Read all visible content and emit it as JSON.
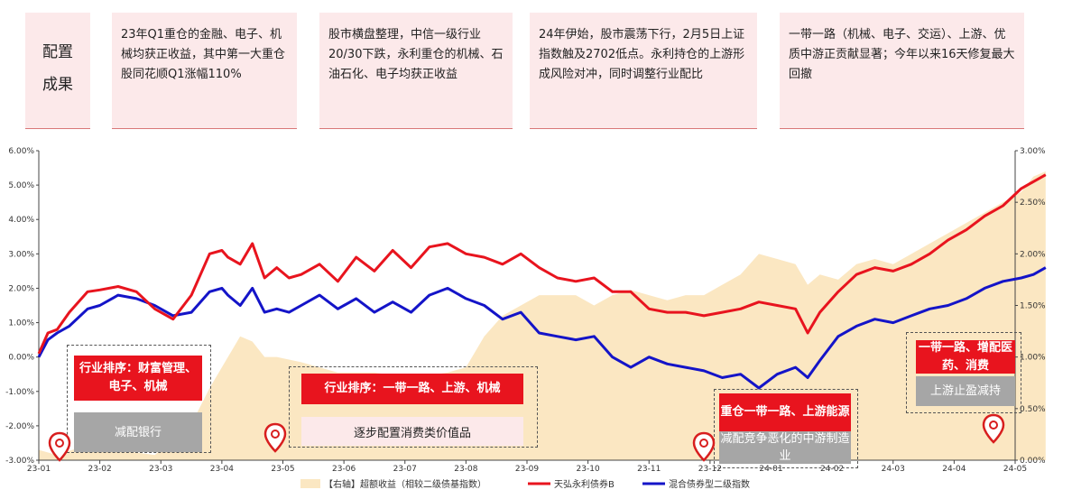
{
  "header": {
    "title_lines": [
      "配置",
      "成果"
    ],
    "cards": [
      "23年Q1重仓的金融、电子、机械均获正收益，其中第一大重仓股同花顺Q1涨幅110%",
      "股市横盘整理，中信一级行业20/30下跌，永利重仓的机械、石油石化、电子均获正收益",
      "24年伊始，股市震荡下行，2月5日上证指数触及2702低点。永利持仓的上游形成风险对冲，同时调整行业配比",
      "一带一路（机械、电子、交运）、上游、优质中游正贡献显著；今年以来16天修复最大回撤"
    ]
  },
  "annotations": [
    {
      "top": "行业排序：财富管理、电子、机械",
      "bottom": "减配银行"
    },
    {
      "top": "行业排序：一带一路、上游、机械",
      "bottom": "逐步配置消费类价值品"
    },
    {
      "top": "重仓一带一路、上游能源",
      "bottom": "减配竞争恶化的中游制造业"
    },
    {
      "top": "一带一路、增配医药、消费",
      "bottom": "上游止盈减持"
    }
  ],
  "colors": {
    "fund": "#e8141e",
    "index": "#1414c8",
    "excess": "#fbe7c2",
    "header_bg": "#fce9ea",
    "pin": "#d81e1e"
  },
  "chart_data": {
    "type": "line",
    "x_ticks": [
      "23-01",
      "23-02",
      "23-03",
      "23-04",
      "23-05",
      "23-06",
      "23-07",
      "23-08",
      "23-09",
      "23-10",
      "23-11",
      "23-12",
      "24-01",
      "24-02",
      "24-03",
      "24-04",
      "24-05"
    ],
    "left_axis": {
      "ticks": [
        "6.00%",
        "5.00%",
        "4.00%",
        "3.00%",
        "2.00%",
        "1.00%",
        "0.00%",
        "-1.00%",
        "-2.00%",
        "-3.00%"
      ],
      "ylim": [
        -3,
        6
      ]
    },
    "right_axis": {
      "ticks": [
        "3.00%",
        "2.50%",
        "2.00%",
        "1.50%",
        "1.00%",
        "0.50%",
        "0.00%"
      ],
      "ylim": [
        0,
        3
      ]
    },
    "legend": [
      "【右轴】超额收益（相较二级债基指数）",
      "天弘永利债券B",
      "混合债券型二级指数"
    ],
    "series": [
      {
        "name": "天弘永利债券B",
        "axis": "left",
        "x": [
          0,
          0.15,
          0.3,
          0.5,
          0.8,
          1,
          1.3,
          1.6,
          1.9,
          2.2,
          2.5,
          2.8,
          3,
          3.1,
          3.3,
          3.5,
          3.7,
          3.9,
          4.1,
          4.3,
          4.6,
          4.9,
          5.2,
          5.5,
          5.8,
          6.1,
          6.4,
          6.7,
          7,
          7.3,
          7.6,
          7.9,
          8.2,
          8.5,
          8.8,
          9.1,
          9.4,
          9.7,
          10,
          10.3,
          10.6,
          10.9,
          11.2,
          11.5,
          11.8,
          12.1,
          12.4,
          12.6,
          12.8,
          13.1,
          13.4,
          13.7,
          14,
          14.3,
          14.6,
          14.9,
          15.2,
          15.5,
          15.8,
          16.1,
          16.3,
          16.5
        ],
        "values": [
          0.1,
          0.7,
          0.8,
          1.3,
          1.9,
          1.95,
          2.05,
          1.9,
          1.4,
          1.1,
          1.8,
          3.0,
          3.1,
          2.9,
          2.7,
          3.3,
          2.3,
          2.6,
          2.3,
          2.4,
          2.7,
          2.2,
          2.9,
          2.5,
          3.1,
          2.6,
          3.2,
          3.3,
          3.0,
          2.9,
          2.7,
          3.0,
          2.6,
          2.3,
          2.2,
          2.3,
          1.9,
          1.9,
          1.4,
          1.3,
          1.3,
          1.2,
          1.3,
          1.4,
          1.6,
          1.5,
          1.4,
          0.7,
          1.3,
          1.9,
          2.4,
          2.6,
          2.5,
          2.7,
          3.0,
          3.4,
          3.7,
          4.1,
          4.4,
          4.9,
          5.1,
          5.3
        ]
      },
      {
        "name": "混合债券型二级指数",
        "axis": "left",
        "x": [
          0,
          0.15,
          0.3,
          0.5,
          0.8,
          1,
          1.3,
          1.6,
          1.9,
          2.2,
          2.5,
          2.8,
          3,
          3.1,
          3.3,
          3.5,
          3.7,
          3.9,
          4.1,
          4.3,
          4.6,
          4.9,
          5.2,
          5.5,
          5.8,
          6.1,
          6.4,
          6.7,
          7,
          7.3,
          7.6,
          7.9,
          8.2,
          8.5,
          8.8,
          9.1,
          9.4,
          9.7,
          10,
          10.3,
          10.6,
          10.9,
          11.2,
          11.5,
          11.8,
          12.1,
          12.4,
          12.6,
          12.8,
          13.1,
          13.4,
          13.7,
          14,
          14.3,
          14.6,
          14.9,
          15.2,
          15.5,
          15.8,
          16.1,
          16.3,
          16.5
        ],
        "values": [
          0,
          0.5,
          0.7,
          0.9,
          1.4,
          1.5,
          1.8,
          1.7,
          1.5,
          1.2,
          1.3,
          1.9,
          2.0,
          1.8,
          1.5,
          2.0,
          1.3,
          1.4,
          1.3,
          1.5,
          1.8,
          1.4,
          1.7,
          1.3,
          1.6,
          1.3,
          1.8,
          2.0,
          1.7,
          1.5,
          1.1,
          1.3,
          0.7,
          0.6,
          0.5,
          0.6,
          0.0,
          -0.3,
          0.0,
          -0.2,
          -0.3,
          -0.4,
          -0.6,
          -0.5,
          -0.9,
          -0.5,
          -0.3,
          -0.6,
          -0.1,
          0.6,
          0.9,
          1.1,
          1.0,
          1.2,
          1.4,
          1.5,
          1.7,
          2.0,
          2.2,
          2.3,
          2.4,
          2.6
        ]
      },
      {
        "name": "【右轴】超额收益（相较二级债基指数）",
        "axis": "right",
        "type": "area",
        "x": [
          0,
          0.3,
          0.8,
          1.3,
          1.9,
          2.5,
          2.8,
          3.1,
          3.3,
          3.5,
          3.7,
          3.9,
          4.3,
          4.9,
          5.5,
          6.1,
          6.7,
          7,
          7.3,
          7.6,
          7.9,
          8.2,
          8.5,
          8.8,
          9.1,
          9.4,
          9.7,
          10,
          10.3,
          10.6,
          10.9,
          11.2,
          11.5,
          11.8,
          12.1,
          12.4,
          12.6,
          12.8,
          13.1,
          13.4,
          13.7,
          14,
          14.3,
          14.6,
          14.9,
          15.2,
          15.5,
          15.8,
          16.1,
          16.3,
          16.5
        ],
        "values": [
          0.1,
          0.05,
          0.15,
          0.1,
          0.05,
          0.35,
          0.7,
          1.0,
          1.2,
          1.15,
          1.0,
          1.0,
          0.95,
          0.85,
          0.85,
          0.8,
          0.85,
          0.9,
          1.2,
          1.4,
          1.5,
          1.6,
          1.6,
          1.6,
          1.5,
          1.6,
          1.65,
          1.6,
          1.55,
          1.6,
          1.6,
          1.7,
          1.8,
          2.0,
          1.95,
          1.9,
          1.7,
          1.8,
          1.75,
          1.9,
          1.95,
          1.9,
          2.0,
          2.1,
          2.2,
          2.3,
          2.4,
          2.5,
          2.6,
          2.75,
          2.8
        ]
      }
    ]
  }
}
